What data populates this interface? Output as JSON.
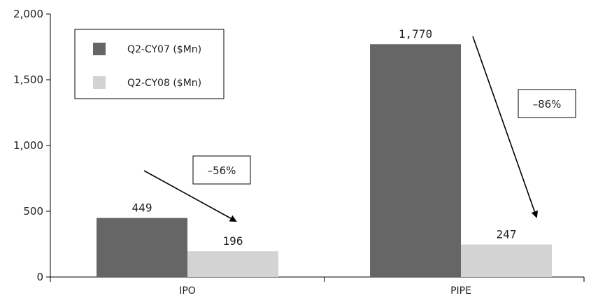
{
  "chart_data": {
    "type": "bar",
    "categories": [
      "IPO",
      "PIPE"
    ],
    "series": [
      {
        "name": "Q2-CY07 ($Mn)",
        "values": [
          449,
          1770
        ],
        "color": "#666666",
        "labels": [
          "449",
          "1,770"
        ]
      },
      {
        "name": "Q2-CY08 ($Mn)",
        "values": [
          196,
          247
        ],
        "color": "#d3d3d3",
        "labels": [
          "196",
          "247"
        ]
      }
    ],
    "ylim": [
      0,
      2000
    ],
    "yticks": [
      0,
      500,
      1000,
      1500,
      2000
    ],
    "ytick_labels": [
      "0",
      "500",
      "1,000",
      "1,500",
      "2,000"
    ],
    "legend_position": "top-left",
    "grid": false,
    "annotations": [
      {
        "category": "IPO",
        "text": "–56%"
      },
      {
        "category": "PIPE",
        "text": "–86%"
      }
    ]
  }
}
